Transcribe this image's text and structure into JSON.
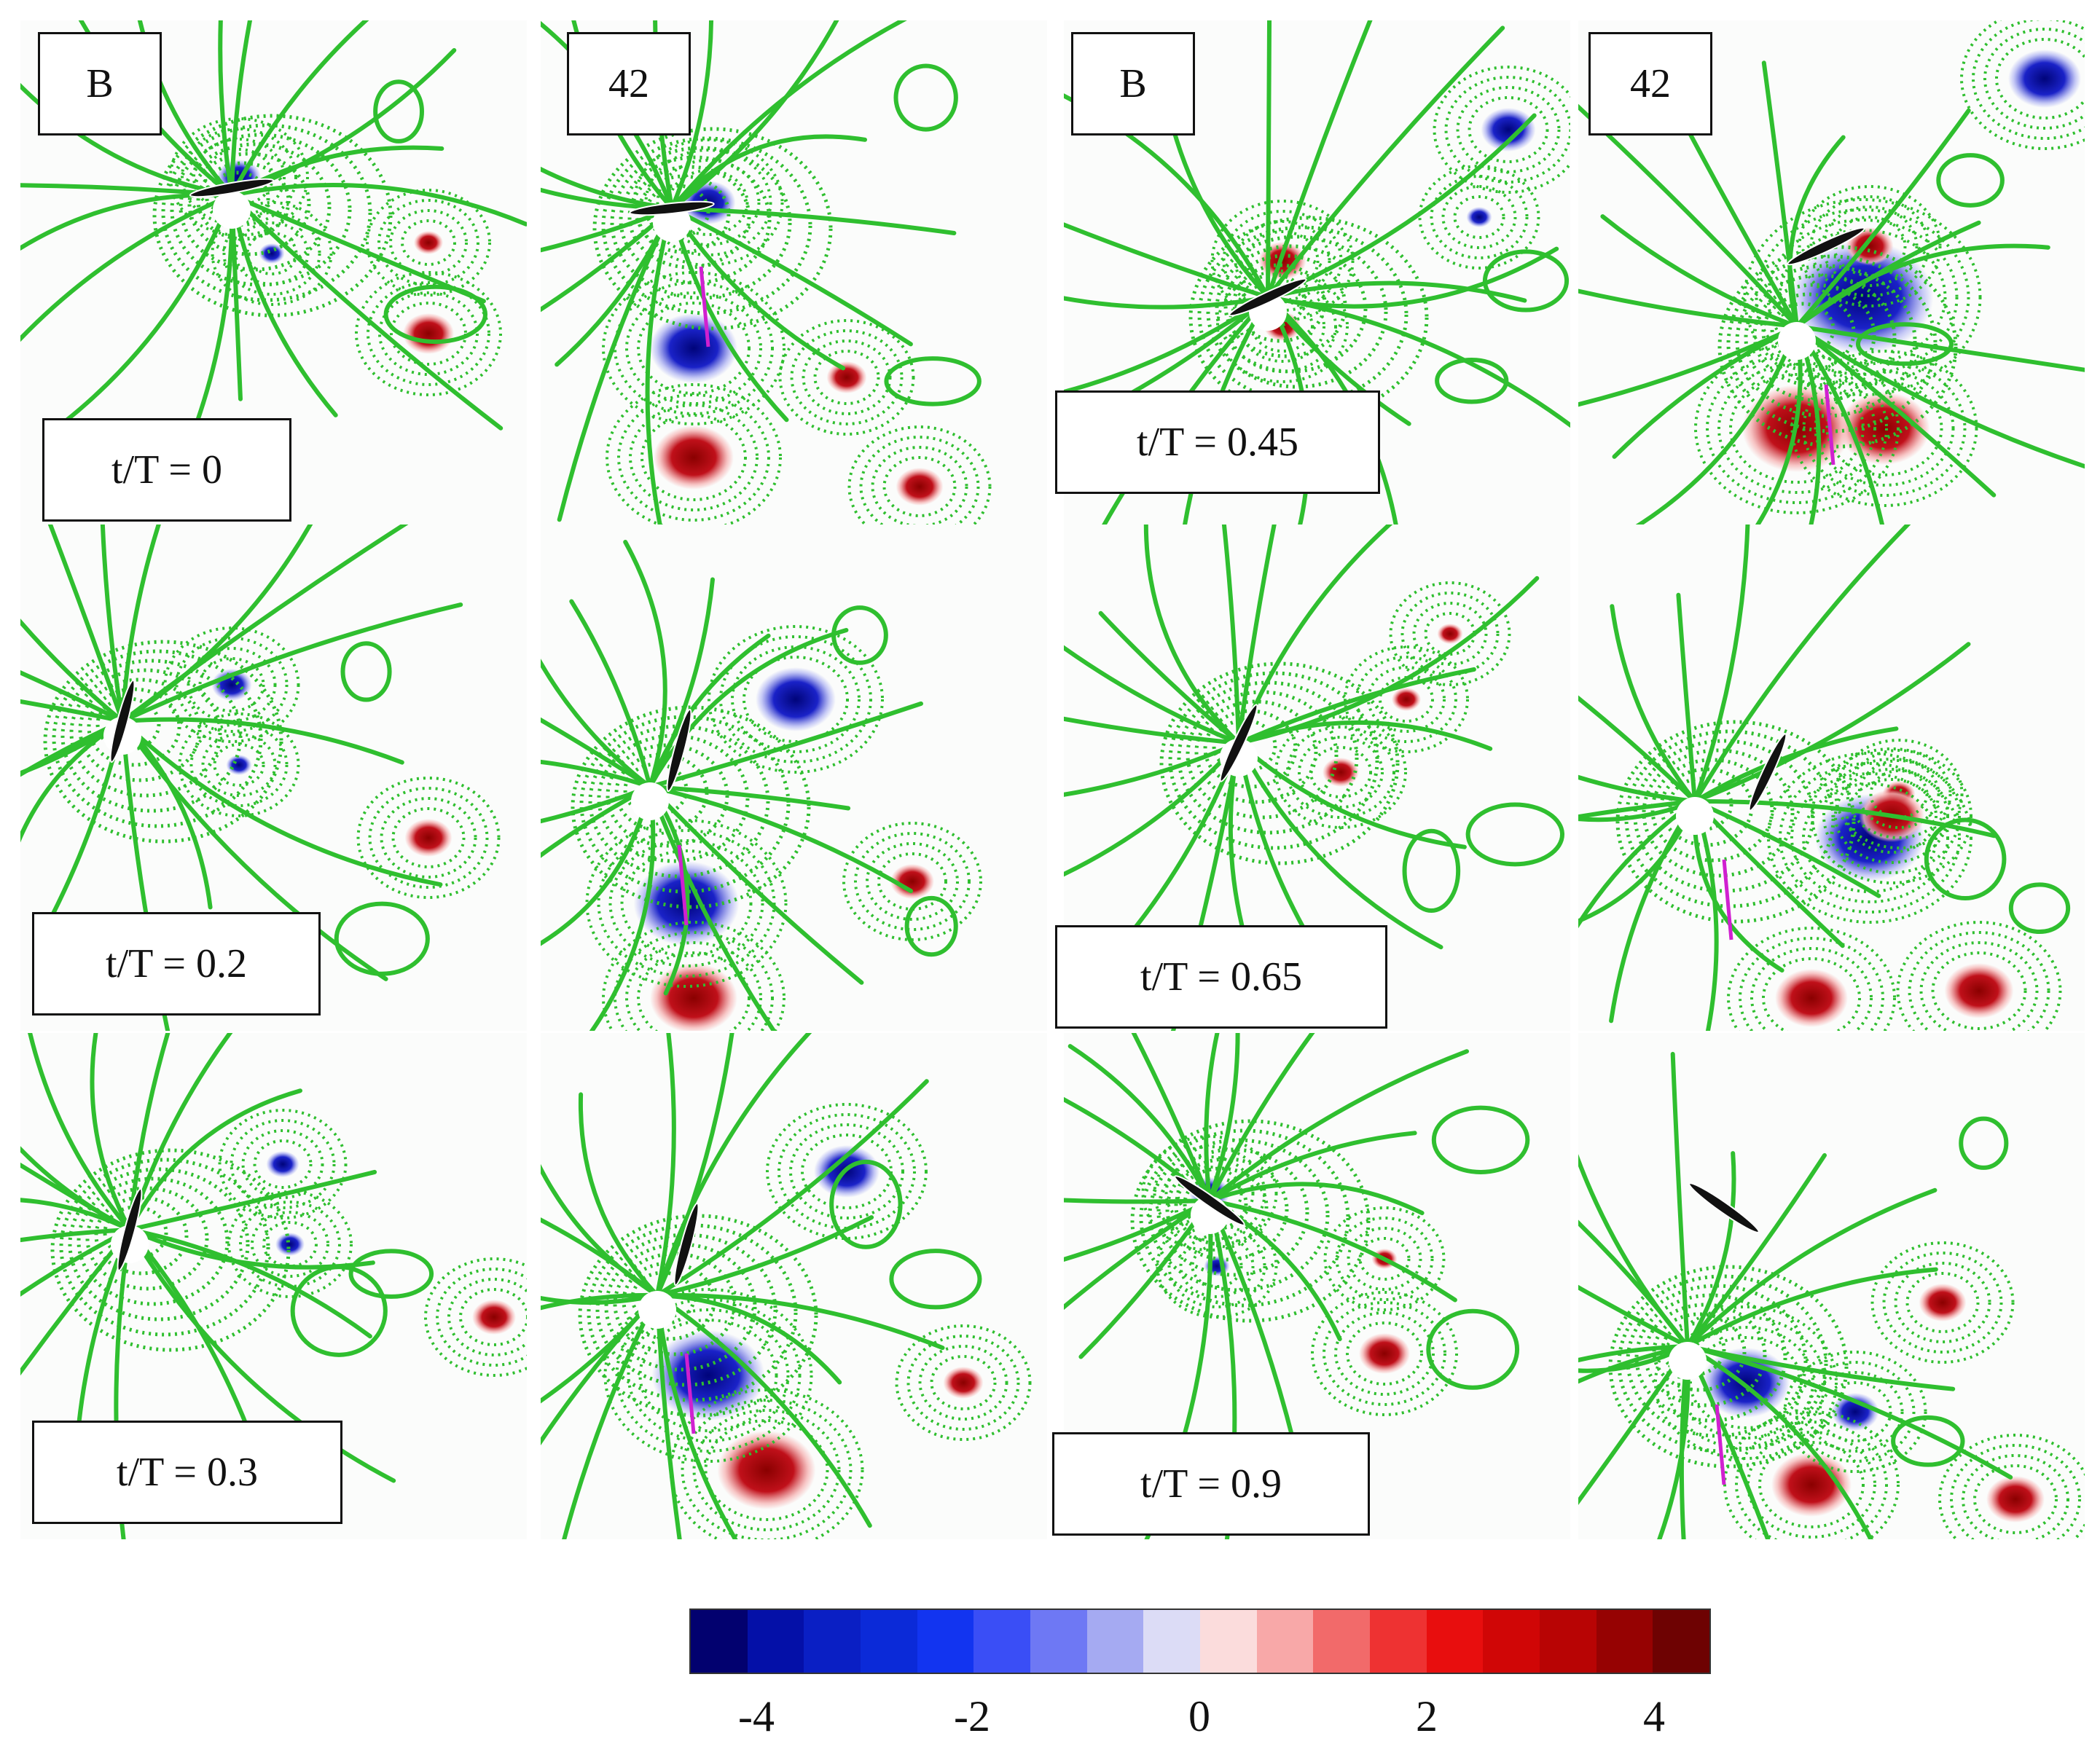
{
  "panels": [
    {
      "case": "B",
      "time": "t/T = 0"
    },
    {
      "case": "42",
      "time": ""
    },
    {
      "case": "B",
      "time": "t/T = 0.45"
    },
    {
      "case": "42",
      "time": ""
    },
    {
      "case": "",
      "time": "t/T = 0.2"
    },
    {
      "case": "",
      "time": ""
    },
    {
      "case": "",
      "time": "t/T = 0.65"
    },
    {
      "case": "",
      "time": ""
    },
    {
      "case": "",
      "time": "t/T = 0.3"
    },
    {
      "case": "",
      "time": ""
    },
    {
      "case": "",
      "time": "t/T = 0.9"
    },
    {
      "case": "",
      "time": ""
    }
  ],
  "colorbar": {
    "min": -4.5,
    "max": 4.5,
    "ticks": [
      "-4",
      "-2",
      "0",
      "2",
      "4"
    ],
    "colors": [
      "#02016f",
      "#0410a8",
      "#0a1fc4",
      "#0b2ad8",
      "#1234f0",
      "#3a4ef6",
      "#6e78f4",
      "#a5aaf2",
      "#dcdcf6",
      "#fbdcdc",
      "#f8a8a8",
      "#f26a6a",
      "#ee3232",
      "#e80e0e",
      "#d00606",
      "#b80404",
      "#960202",
      "#6e0202"
    ],
    "positive_color": "#c0101a",
    "negative_color": "#1a22c8",
    "contour_color": "#2fbf2f"
  }
}
